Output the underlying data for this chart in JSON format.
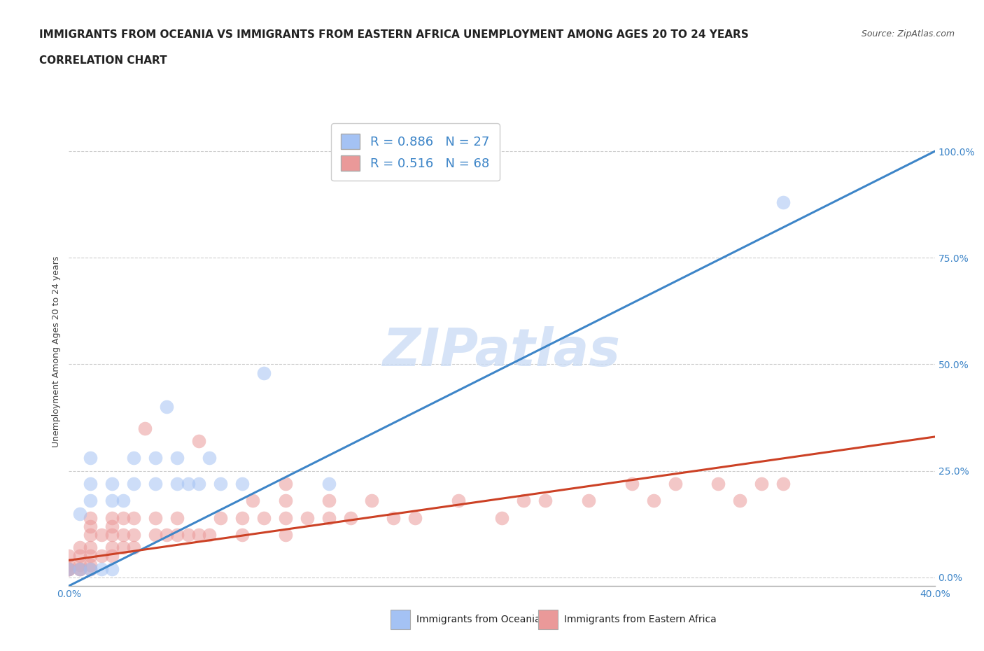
{
  "title_line1": "IMMIGRANTS FROM OCEANIA VS IMMIGRANTS FROM EASTERN AFRICA UNEMPLOYMENT AMONG AGES 20 TO 24 YEARS",
  "title_line2": "CORRELATION CHART",
  "source": "Source: ZipAtlas.com",
  "ylabel": "Unemployment Among Ages 20 to 24 years",
  "xmin": 0.0,
  "xmax": 0.4,
  "ymin": -0.02,
  "ymax": 1.08,
  "yticks": [
    0.0,
    0.25,
    0.5,
    0.75,
    1.0
  ],
  "ytick_labels": [
    "0.0%",
    "25.0%",
    "50.0%",
    "75.0%",
    "100.0%"
  ],
  "blue_R": 0.886,
  "blue_N": 27,
  "pink_R": 0.516,
  "pink_N": 68,
  "blue_color": "#a4c2f4",
  "pink_color": "#ea9999",
  "blue_line_color": "#3d85c8",
  "pink_line_color": "#cc4125",
  "legend_label_blue": "Immigrants from Oceania",
  "legend_label_pink": "Immigrants from Eastern Africa",
  "watermark": "ZIPatlas",
  "background_color": "#ffffff",
  "blue_scatter_x": [
    0.0,
    0.005,
    0.005,
    0.01,
    0.01,
    0.01,
    0.01,
    0.015,
    0.02,
    0.02,
    0.02,
    0.025,
    0.03,
    0.03,
    0.04,
    0.04,
    0.045,
    0.05,
    0.05,
    0.055,
    0.06,
    0.065,
    0.07,
    0.08,
    0.09,
    0.12,
    0.33
  ],
  "blue_scatter_y": [
    0.02,
    0.02,
    0.15,
    0.02,
    0.22,
    0.28,
    0.18,
    0.02,
    0.02,
    0.18,
    0.22,
    0.18,
    0.22,
    0.28,
    0.22,
    0.28,
    0.4,
    0.22,
    0.28,
    0.22,
    0.22,
    0.28,
    0.22,
    0.22,
    0.48,
    0.22,
    0.88
  ],
  "pink_scatter_x": [
    0.0,
    0.0,
    0.0,
    0.0,
    0.0,
    0.005,
    0.005,
    0.005,
    0.005,
    0.005,
    0.01,
    0.01,
    0.01,
    0.01,
    0.01,
    0.01,
    0.01,
    0.015,
    0.015,
    0.02,
    0.02,
    0.02,
    0.02,
    0.02,
    0.025,
    0.025,
    0.025,
    0.03,
    0.03,
    0.03,
    0.035,
    0.04,
    0.04,
    0.045,
    0.05,
    0.05,
    0.055,
    0.06,
    0.06,
    0.065,
    0.07,
    0.08,
    0.08,
    0.085,
    0.09,
    0.1,
    0.1,
    0.1,
    0.1,
    0.11,
    0.12,
    0.12,
    0.13,
    0.14,
    0.15,
    0.16,
    0.18,
    0.2,
    0.21,
    0.22,
    0.24,
    0.26,
    0.27,
    0.28,
    0.3,
    0.31,
    0.32,
    0.33
  ],
  "pink_scatter_y": [
    0.02,
    0.02,
    0.02,
    0.03,
    0.05,
    0.02,
    0.02,
    0.03,
    0.05,
    0.07,
    0.02,
    0.03,
    0.05,
    0.07,
    0.1,
    0.12,
    0.14,
    0.05,
    0.1,
    0.05,
    0.07,
    0.1,
    0.12,
    0.14,
    0.07,
    0.1,
    0.14,
    0.07,
    0.1,
    0.14,
    0.35,
    0.1,
    0.14,
    0.1,
    0.1,
    0.14,
    0.1,
    0.1,
    0.32,
    0.1,
    0.14,
    0.1,
    0.14,
    0.18,
    0.14,
    0.1,
    0.14,
    0.18,
    0.22,
    0.14,
    0.14,
    0.18,
    0.14,
    0.18,
    0.14,
    0.14,
    0.18,
    0.14,
    0.18,
    0.18,
    0.18,
    0.22,
    0.18,
    0.22,
    0.22,
    0.18,
    0.22,
    0.22
  ],
  "blue_line_x": [
    0.0,
    0.4
  ],
  "blue_line_y": [
    -0.02,
    1.0
  ],
  "pink_line_x": [
    0.0,
    0.4
  ],
  "pink_line_y": [
    0.04,
    0.33
  ],
  "title_fontsize": 11,
  "subtitle_fontsize": 11,
  "axis_label_fontsize": 9,
  "tick_fontsize": 10,
  "legend_fontsize": 13,
  "source_fontsize": 9
}
